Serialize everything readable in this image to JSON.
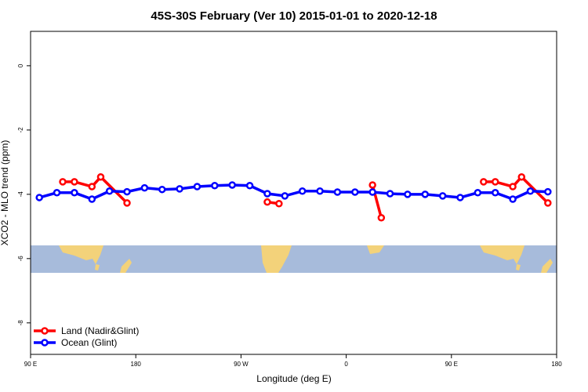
{
  "chart_data": {
    "type": "line",
    "title": "45S-30S February (Ver 10)   2015-01-01 to 2020-12-18",
    "x_label": "Longitude (deg E)",
    "y_label": "XCO2 - MLO trend (ppm)",
    "xlim": [
      90,
      540
    ],
    "xticks": [
      {
        "value": 90,
        "label": "90 E"
      },
      180,
      {
        "value": 270,
        "label": "90 W"
      },
      {
        "value": 360,
        "label": "0"
      },
      {
        "value": 450,
        "label": "90 E"
      },
      {
        "value": 540,
        "label": "180"
      }
    ],
    "ylim": [
      -8.98,
      1.07
    ],
    "yticks": [
      0,
      -2,
      -4,
      -6,
      -8
    ],
    "legend": "bottom-left",
    "series": [
      {
        "name": "Land (Nadir&Glint)",
        "color": "#ff0000",
        "x": [
          117.5,
          127.5,
          142.5,
          150,
          172.5,
          232.5,
          292.5,
          302.5,
          345,
          382.5,
          390,
          435,
          477.5,
          487.5,
          502.5,
          510,
          532.5
        ],
        "values": [
          -3.61,
          -3.61,
          -3.76,
          -3.46,
          -4.27,
          null,
          -4.24,
          -4.29,
          null,
          -3.71,
          -4.73,
          null,
          -3.61,
          -3.61,
          -3.76,
          -3.46,
          -4.27
        ]
      },
      {
        "name": "Ocean (Glint)",
        "color": "#0000ff",
        "x": [
          97.5,
          112.5,
          127.5,
          142.5,
          157.5,
          172.5,
          187.5,
          202.5,
          217.5,
          232.5,
          247.5,
          262.5,
          277.5,
          292.5,
          307.5,
          322.5,
          337.5,
          352.5,
          367.5,
          382.5,
          397.5,
          412.5,
          427.5,
          442.5,
          457.5,
          472.5,
          487.5,
          502.5,
          517.5,
          532.5
        ],
        "values": [
          -4.1,
          -3.95,
          -3.95,
          -4.15,
          -3.9,
          -3.92,
          -3.8,
          -3.85,
          -3.83,
          -3.76,
          -3.73,
          -3.71,
          -3.73,
          -3.98,
          -4.05,
          -3.9,
          -3.9,
          -3.93,
          -3.93,
          -3.93,
          -3.98,
          -4.0,
          -4.0,
          -4.05,
          -4.1,
          -3.95,
          -3.95,
          -4.15,
          -3.9,
          -3.92
        ]
      }
    ]
  }
}
